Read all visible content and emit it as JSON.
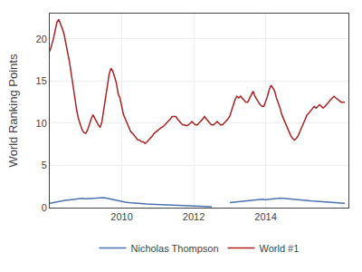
{
  "chart_data": {
    "type": "line",
    "ylabel": "World Ranking Points",
    "xlim": [
      2008.0,
      2016.3
    ],
    "ylim": [
      0,
      23
    ],
    "xticks": [
      2010,
      2012,
      2014
    ],
    "yticks": [
      0,
      5,
      10,
      15,
      20
    ],
    "grid": true,
    "legend": "bottom",
    "series": [
      {
        "name": "Nicholas Thompson",
        "color": "#4c72b0",
        "x": [
          2008.0,
          2008.05,
          2008.1,
          2008.15,
          2008.2,
          2008.25,
          2008.3,
          2008.35,
          2008.4,
          2008.45,
          2008.5,
          2008.55,
          2008.6,
          2008.65,
          2008.7,
          2008.75,
          2008.8,
          2008.85,
          2008.9,
          2008.95,
          2009.0,
          2009.1,
          2009.2,
          2009.3,
          2009.4,
          2009.5,
          2009.6,
          2009.7,
          2009.8,
          2009.9,
          2010.0,
          2010.1,
          2010.2,
          2010.3,
          2010.4,
          2010.5,
          2010.6,
          2010.7,
          2010.8,
          2010.9,
          2011.0,
          2011.1,
          2011.2,
          2011.3,
          2011.4,
          2011.5,
          2011.6,
          2011.7,
          2011.8,
          2011.9,
          2012.0,
          2012.1,
          2012.2,
          2012.3,
          2012.4,
          2012.5,
          null,
          2013.0,
          2013.1,
          2013.2,
          2013.3,
          2013.4,
          2013.5,
          2013.6,
          2013.7,
          2013.8,
          2013.9,
          2014.0,
          2014.1,
          2014.2,
          2014.3,
          2014.4,
          2014.5,
          2014.6,
          2014.7,
          2014.8,
          2014.9,
          2015.0,
          2015.1,
          2015.2,
          2015.3,
          2015.4,
          2015.5,
          2015.6,
          2015.7,
          2015.8,
          2015.9,
          2016.0,
          2016.1,
          2016.2
        ],
        "values": [
          0.5,
          0.55,
          0.6,
          0.65,
          0.7,
          0.72,
          0.75,
          0.8,
          0.85,
          0.88,
          0.9,
          0.92,
          0.95,
          1.0,
          1.05,
          1.08,
          1.1,
          1.12,
          1.1,
          1.08,
          1.05,
          1.08,
          1.1,
          1.15,
          1.2,
          1.18,
          1.1,
          1.0,
          0.9,
          0.8,
          0.7,
          0.65,
          0.6,
          0.55,
          0.5,
          0.48,
          0.45,
          0.42,
          0.4,
          0.38,
          0.35,
          0.33,
          0.32,
          0.3,
          0.28,
          0.27,
          0.25,
          0.23,
          0.22,
          0.2,
          0.18,
          0.17,
          0.15,
          0.13,
          0.12,
          0.1,
          null,
          0.6,
          0.65,
          0.7,
          0.72,
          0.75,
          0.8,
          0.85,
          0.9,
          0.95,
          1.0,
          0.95,
          1.0,
          1.05,
          1.1,
          1.12,
          1.1,
          1.05,
          1.0,
          0.95,
          0.9,
          0.85,
          0.82,
          0.8,
          0.78,
          0.75,
          0.72,
          0.7,
          0.65,
          0.62,
          0.6,
          0.55,
          0.5,
          0.5
        ]
      },
      {
        "name": "World #1",
        "color": "#aa2222",
        "x": [
          2008.0,
          2008.05,
          2008.1,
          2008.15,
          2008.2,
          2008.25,
          2008.3,
          2008.35,
          2008.4,
          2008.45,
          2008.5,
          2008.55,
          2008.6,
          2008.65,
          2008.7,
          2008.75,
          2008.8,
          2008.85,
          2008.9,
          2008.95,
          2009.0,
          2009.05,
          2009.1,
          2009.15,
          2009.2,
          2009.25,
          2009.3,
          2009.35,
          2009.4,
          2009.45,
          2009.5,
          2009.55,
          2009.6,
          2009.65,
          2009.7,
          2009.75,
          2009.8,
          2009.85,
          2009.9,
          2009.95,
          2010.0,
          2010.05,
          2010.1,
          2010.15,
          2010.2,
          2010.25,
          2010.3,
          2010.35,
          2010.4,
          2010.45,
          2010.5,
          2010.55,
          2010.6,
          2010.65,
          2010.7,
          2010.75,
          2010.8,
          2010.85,
          2010.9,
          2010.95,
          2011.0,
          2011.05,
          2011.1,
          2011.15,
          2011.2,
          2011.25,
          2011.3,
          2011.35,
          2011.4,
          2011.45,
          2011.5,
          2011.55,
          2011.6,
          2011.65,
          2011.7,
          2011.75,
          2011.8,
          2011.85,
          2011.9,
          2011.95,
          2012.0,
          2012.05,
          2012.1,
          2012.15,
          2012.2,
          2012.25,
          2012.3,
          2012.35,
          2012.4,
          2012.45,
          2012.5,
          2012.55,
          2012.6,
          2012.65,
          2012.7,
          2012.75,
          2012.8,
          2012.85,
          2012.9,
          2012.95,
          2013.0,
          2013.05,
          2013.1,
          2013.15,
          2013.2,
          2013.25,
          2013.3,
          2013.35,
          2013.4,
          2013.45,
          2013.5,
          2013.55,
          2013.6,
          2013.65,
          2013.7,
          2013.75,
          2013.8,
          2013.85,
          2013.9,
          2013.95,
          2014.0,
          2014.05,
          2014.1,
          2014.15,
          2014.2,
          2014.25,
          2014.3,
          2014.35,
          2014.4,
          2014.45,
          2014.5,
          2014.55,
          2014.6,
          2014.65,
          2014.7,
          2014.75,
          2014.8,
          2014.85,
          2014.9,
          2014.95,
          2015.0,
          2015.05,
          2015.1,
          2015.15,
          2015.2,
          2015.25,
          2015.3,
          2015.35,
          2015.4,
          2015.45,
          2015.5,
          2015.55,
          2015.6,
          2015.65,
          2015.7,
          2015.75,
          2015.8,
          2015.85,
          2015.9,
          2015.95,
          2016.0,
          2016.1,
          2016.2
        ],
        "values": [
          18.5,
          19.2,
          20.0,
          21.0,
          22.0,
          22.3,
          21.8,
          21.2,
          20.5,
          19.5,
          18.5,
          17.2,
          15.8,
          14.2,
          12.8,
          11.5,
          10.5,
          9.8,
          9.2,
          8.9,
          8.8,
          9.2,
          10.0,
          10.5,
          11.0,
          10.5,
          10.2,
          9.8,
          9.5,
          10.2,
          11.5,
          13.0,
          14.5,
          15.8,
          16.5,
          16.2,
          15.5,
          14.8,
          13.5,
          13.0,
          12.0,
          11.0,
          10.5,
          10.0,
          9.5,
          9.0,
          8.8,
          8.5,
          8.2,
          8.0,
          8.0,
          7.8,
          7.8,
          7.6,
          7.8,
          8.0,
          8.3,
          8.5,
          8.8,
          9.0,
          9.2,
          9.3,
          9.5,
          9.6,
          9.8,
          10.0,
          10.2,
          10.5,
          10.8,
          10.8,
          10.8,
          10.5,
          10.2,
          10.0,
          9.8,
          9.8,
          9.7,
          9.8,
          10.0,
          10.2,
          10.0,
          9.8,
          9.8,
          10.0,
          10.2,
          10.5,
          10.8,
          10.5,
          10.2,
          10.0,
          9.8,
          9.8,
          10.0,
          10.2,
          10.0,
          9.8,
          9.8,
          10.0,
          10.2,
          10.5,
          10.8,
          11.5,
          12.2,
          12.8,
          13.2,
          13.0,
          13.2,
          13.0,
          12.8,
          12.5,
          12.5,
          13.0,
          13.5,
          13.8,
          13.2,
          12.8,
          12.5,
          12.2,
          12.0,
          12.0,
          12.5,
          13.2,
          14.0,
          14.5,
          14.2,
          13.8,
          13.0,
          12.5,
          11.8,
          11.0,
          10.5,
          10.0,
          9.5,
          9.0,
          8.5,
          8.2,
          8.0,
          8.2,
          8.5,
          9.0,
          9.5,
          10.0,
          10.5,
          11.0,
          11.2,
          11.5,
          11.8,
          12.0,
          11.8,
          12.0,
          12.2,
          12.0,
          11.8,
          12.0,
          12.2,
          12.5,
          12.8,
          13.0,
          13.2,
          13.0,
          12.8,
          12.5,
          12.5
        ]
      }
    ]
  }
}
